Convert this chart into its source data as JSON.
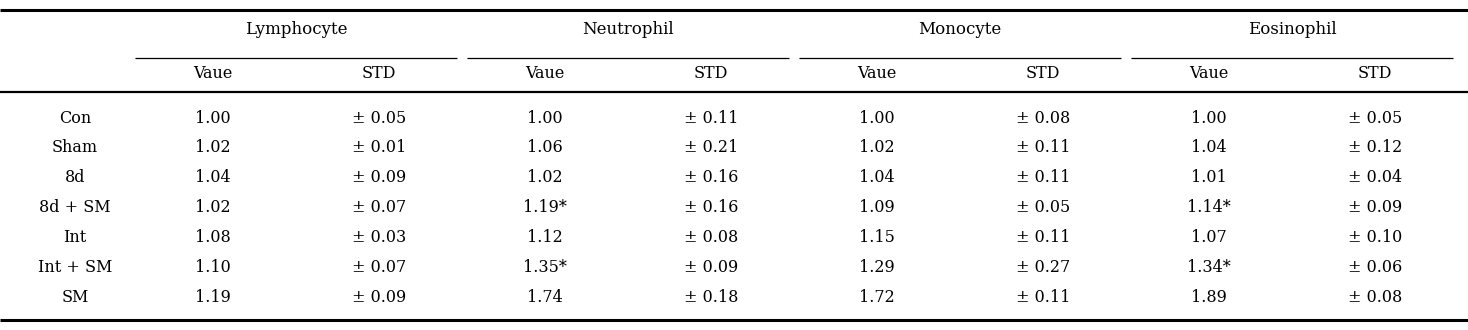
{
  "col_groups": [
    "Lymphocyte",
    "Neutrophil",
    "Monocyte",
    "Eosinophil"
  ],
  "sub_cols": [
    "Vaue",
    "STD",
    "Vaue",
    "STD",
    "Vaue",
    "STD",
    "Vaue",
    "STD"
  ],
  "row_labels": [
    "Con",
    "Sham",
    "8d",
    "8d + SM",
    "Int",
    "Int + SM",
    "SM"
  ],
  "data": [
    [
      "1.00",
      "± 0.05",
      "1.00",
      "± 0.11",
      "1.00",
      "± 0.08",
      "1.00",
      "± 0.05"
    ],
    [
      "1.02",
      "± 0.01",
      "1.06",
      "± 0.21",
      "1.02",
      "± 0.11",
      "1.04",
      "± 0.12"
    ],
    [
      "1.04",
      "± 0.09",
      "1.02",
      "± 0.16",
      "1.04",
      "± 0.11",
      "1.01",
      "± 0.04"
    ],
    [
      "1.02",
      "± 0.07",
      "1.19*",
      "± 0.16",
      "1.09",
      "± 0.05",
      "1.14*",
      "± 0.09"
    ],
    [
      "1.08",
      "± 0.03",
      "1.12",
      "± 0.08",
      "1.15",
      "± 0.11",
      "1.07",
      "± 0.10"
    ],
    [
      "1.10",
      "± 0.07",
      "1.35*",
      "± 0.09",
      "1.29",
      "± 0.27",
      "1.34*",
      "± 0.06"
    ],
    [
      "1.19",
      "± 0.09",
      "1.74",
      "± 0.18",
      "1.72",
      "± 0.11",
      "1.89",
      "± 0.08"
    ]
  ],
  "background_color": "#ffffff",
  "text_color": "#000000",
  "font_size": 11.5,
  "group_font_size": 12,
  "figsize": [
    14.68,
    3.3
  ],
  "dpi": 100
}
